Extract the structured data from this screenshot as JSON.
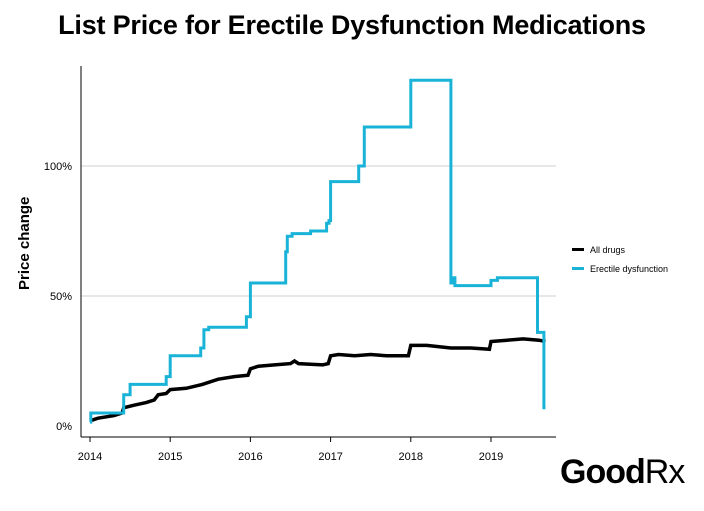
{
  "chart_data": {
    "type": "line",
    "title": "List Price for Erectile Dysfunction Medications",
    "ylabel": "Price change",
    "xlabel": "",
    "xlim": [
      2014,
      2019.75
    ],
    "ylim": [
      0,
      135
    ],
    "y_ticks": [
      0,
      50,
      100
    ],
    "y_tick_labels": [
      "0%",
      "50%",
      "100%"
    ],
    "x_ticks": [
      2014,
      2015,
      2016,
      2017,
      2018,
      2019
    ],
    "x_tick_labels": [
      "2014",
      "2015",
      "2016",
      "2017",
      "2018",
      "2019"
    ],
    "grid": "horizontal",
    "legend_position": "right",
    "series": [
      {
        "name": "All drugs",
        "color": "#000000",
        "step": false,
        "points": [
          [
            2014.0,
            2
          ],
          [
            2014.1,
            3
          ],
          [
            2014.3,
            4
          ],
          [
            2014.4,
            5
          ],
          [
            2014.42,
            7
          ],
          [
            2014.55,
            8
          ],
          [
            2014.7,
            9
          ],
          [
            2014.8,
            10
          ],
          [
            2014.85,
            12
          ],
          [
            2014.95,
            12.5
          ],
          [
            2015.0,
            14
          ],
          [
            2015.2,
            14.5
          ],
          [
            2015.4,
            16
          ],
          [
            2015.6,
            18
          ],
          [
            2015.8,
            19
          ],
          [
            2015.97,
            19.5
          ],
          [
            2016.0,
            22
          ],
          [
            2016.1,
            23
          ],
          [
            2016.3,
            23.5
          ],
          [
            2016.5,
            24
          ],
          [
            2016.55,
            25
          ],
          [
            2016.6,
            24
          ],
          [
            2016.9,
            23.5
          ],
          [
            2016.97,
            24
          ],
          [
            2017.0,
            27
          ],
          [
            2017.1,
            27.5
          ],
          [
            2017.3,
            27
          ],
          [
            2017.5,
            27.5
          ],
          [
            2017.7,
            27
          ],
          [
            2017.97,
            27
          ],
          [
            2018.0,
            31
          ],
          [
            2018.2,
            31
          ],
          [
            2018.5,
            30
          ],
          [
            2018.75,
            30
          ],
          [
            2018.98,
            29.5
          ],
          [
            2019.0,
            32.5
          ],
          [
            2019.2,
            33
          ],
          [
            2019.4,
            33.5
          ],
          [
            2019.6,
            33
          ],
          [
            2019.68,
            32.5
          ]
        ]
      },
      {
        "name": "Erectile dysfunction",
        "color": "#1ab3d8",
        "step": true,
        "points": [
          [
            2014.0,
            1.5
          ],
          [
            2014.01,
            5
          ],
          [
            2014.4,
            5
          ],
          [
            2014.42,
            12
          ],
          [
            2014.5,
            16
          ],
          [
            2014.93,
            16
          ],
          [
            2014.95,
            19
          ],
          [
            2015.0,
            27
          ],
          [
            2015.35,
            27
          ],
          [
            2015.38,
            30
          ],
          [
            2015.42,
            37
          ],
          [
            2015.48,
            38
          ],
          [
            2015.92,
            38
          ],
          [
            2015.95,
            42
          ],
          [
            2016.0,
            55
          ],
          [
            2016.42,
            55
          ],
          [
            2016.44,
            67
          ],
          [
            2016.46,
            73
          ],
          [
            2016.52,
            74
          ],
          [
            2016.72,
            74
          ],
          [
            2016.75,
            75
          ],
          [
            2016.92,
            75
          ],
          [
            2016.95,
            78
          ],
          [
            2016.98,
            79
          ],
          [
            2017.0,
            94
          ],
          [
            2017.32,
            94
          ],
          [
            2017.35,
            100
          ],
          [
            2017.42,
            115
          ],
          [
            2017.97,
            115
          ],
          [
            2018.0,
            133
          ],
          [
            2018.48,
            133
          ],
          [
            2018.5,
            55
          ],
          [
            2018.53,
            57
          ],
          [
            2018.55,
            54
          ],
          [
            2018.85,
            54
          ],
          [
            2019.0,
            56
          ],
          [
            2019.08,
            57
          ],
          [
            2019.55,
            57
          ],
          [
            2019.58,
            36
          ],
          [
            2019.63,
            36
          ],
          [
            2019.66,
            7
          ],
          [
            2019.68,
            7
          ]
        ]
      }
    ]
  },
  "brand": {
    "name": "Good",
    "suffix": "Rx"
  }
}
